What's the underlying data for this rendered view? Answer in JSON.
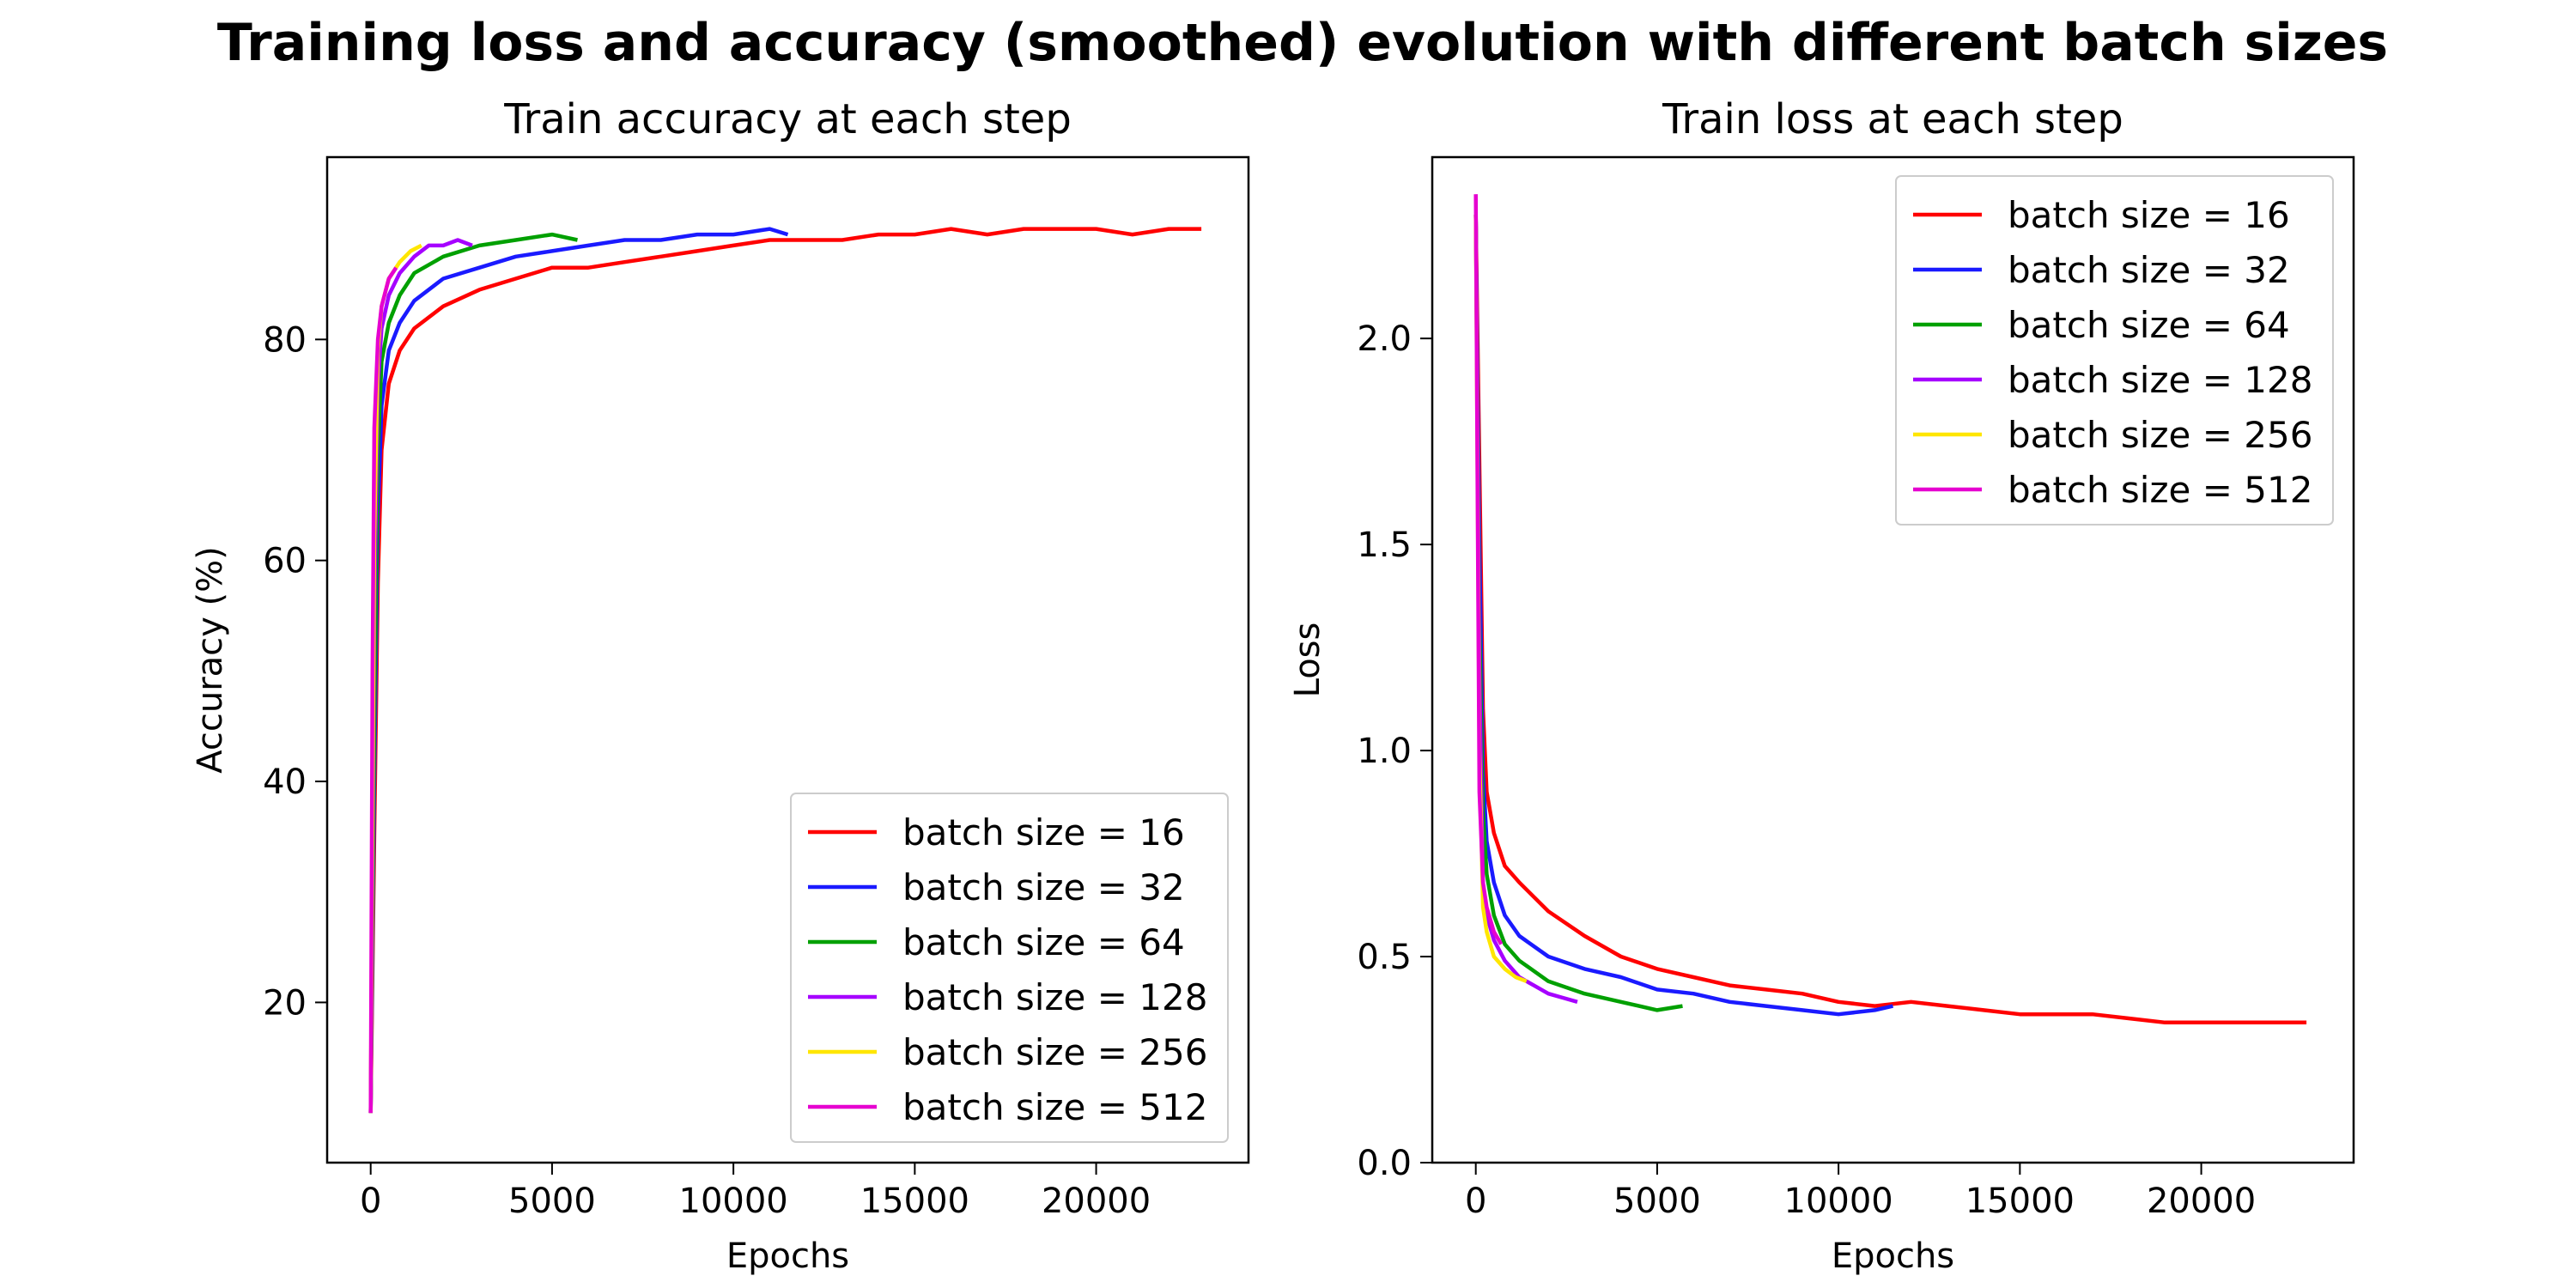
{
  "figure": {
    "title": "Training loss and accuracy (smoothed) evolution with different batch sizes"
  },
  "colors": {
    "batch_16": "#ff0000",
    "batch_32": "#1a1aff",
    "batch_64": "#00a000",
    "batch_128": "#a600ff",
    "batch_256": "#ffe600",
    "batch_512": "#e600d0"
  },
  "chart_data": [
    {
      "type": "line",
      "title": "Train accuracy at each step",
      "xlabel": "Epochs",
      "ylabel": "Accuracy (%)",
      "xlim": [
        -1200,
        24200
      ],
      "ylim": [
        5.5,
        96.5
      ],
      "xticks": [
        0,
        5000,
        10000,
        15000,
        20000
      ],
      "yticks": [
        20,
        40,
        60,
        80
      ],
      "grid": false,
      "legend": "lower-right",
      "series": [
        {
          "name": "batch size = 16",
          "color_key": "batch_16",
          "x": [
            0,
            100,
            200,
            300,
            500,
            800,
            1200,
            2000,
            3000,
            4000,
            5000,
            6000,
            7000,
            8000,
            9000,
            10000,
            11000,
            12000,
            13000,
            14000,
            15000,
            16000,
            17000,
            18000,
            19000,
            20000,
            21000,
            22000,
            22900
          ],
          "y": [
            10,
            35,
            58,
            70,
            76,
            79,
            81,
            83,
            84.5,
            85.5,
            86.5,
            86.5,
            87,
            87.5,
            88,
            88.5,
            89,
            89,
            89,
            89.5,
            89.5,
            90,
            89.5,
            90,
            90,
            90,
            89.5,
            90,
            90
          ]
        },
        {
          "name": "batch size = 32",
          "color_key": "batch_32",
          "x": [
            0,
            100,
            200,
            300,
            500,
            800,
            1200,
            2000,
            3000,
            4000,
            5000,
            6000,
            7000,
            8000,
            9000,
            10000,
            11000,
            11500
          ],
          "y": [
            10,
            40,
            64,
            74,
            79,
            81.5,
            83.5,
            85.5,
            86.5,
            87.5,
            88,
            88.5,
            89,
            89,
            89.5,
            89.5,
            90,
            89.5
          ]
        },
        {
          "name": "batch size = 64",
          "color_key": "batch_64",
          "x": [
            0,
            100,
            200,
            300,
            500,
            800,
            1200,
            2000,
            3000,
            4000,
            5000,
            5700
          ],
          "y": [
            10,
            45,
            70,
            78,
            81.5,
            84,
            86,
            87.5,
            88.5,
            89,
            89.5,
            89
          ]
        },
        {
          "name": "batch size = 128",
          "color_key": "batch_128",
          "x": [
            0,
            100,
            200,
            300,
            500,
            800,
            1200,
            1600,
            2000,
            2400,
            2800
          ],
          "y": [
            10,
            55,
            76,
            81,
            84,
            86,
            87.5,
            88.5,
            88.5,
            89,
            88.5
          ]
        },
        {
          "name": "batch size = 256",
          "color_key": "batch_256",
          "x": [
            0,
            100,
            200,
            300,
            500,
            800,
            1100,
            1400
          ],
          "y": [
            10,
            62,
            79,
            83,
            85.5,
            87,
            88,
            88.5
          ]
        },
        {
          "name": "batch size = 512",
          "color_key": "batch_512",
          "x": [
            0,
            50,
            100,
            200,
            300,
            500,
            700
          ],
          "y": [
            10,
            50,
            72,
            80,
            83,
            85.5,
            86.5
          ]
        }
      ]
    },
    {
      "type": "line",
      "title": "Train loss at each step",
      "xlabel": "Epochs",
      "ylabel": "Loss",
      "xlim": [
        -1200,
        24200
      ],
      "ylim": [
        0.0,
        2.44
      ],
      "xticks": [
        0,
        5000,
        10000,
        15000,
        20000
      ],
      "yticks": [
        0.0,
        0.5,
        1.0,
        1.5,
        2.0
      ],
      "grid": false,
      "legend": "upper-right",
      "series": [
        {
          "name": "batch size = 16",
          "color_key": "batch_16",
          "x": [
            0,
            100,
            200,
            300,
            500,
            800,
            1200,
            2000,
            3000,
            4000,
            5000,
            6000,
            7000,
            8000,
            9000,
            10000,
            11000,
            12000,
            13000,
            14000,
            15000,
            16000,
            17000,
            18000,
            19000,
            20000,
            21000,
            22000,
            22900
          ],
          "y": [
            2.3,
            1.7,
            1.1,
            0.9,
            0.8,
            0.72,
            0.68,
            0.61,
            0.55,
            0.5,
            0.47,
            0.45,
            0.43,
            0.42,
            0.41,
            0.39,
            0.38,
            0.39,
            0.38,
            0.37,
            0.36,
            0.36,
            0.36,
            0.35,
            0.34,
            0.34,
            0.34,
            0.34,
            0.34
          ]
        },
        {
          "name": "batch size = 32",
          "color_key": "batch_32",
          "x": [
            0,
            100,
            200,
            300,
            500,
            800,
            1200,
            2000,
            3000,
            4000,
            5000,
            6000,
            7000,
            8000,
            9000,
            10000,
            11000,
            11500
          ],
          "y": [
            2.3,
            1.5,
            0.95,
            0.78,
            0.68,
            0.6,
            0.55,
            0.5,
            0.47,
            0.45,
            0.42,
            0.41,
            0.39,
            0.38,
            0.37,
            0.36,
            0.37,
            0.38
          ]
        },
        {
          "name": "batch size = 64",
          "color_key": "batch_64",
          "x": [
            0,
            100,
            200,
            300,
            500,
            800,
            1200,
            2000,
            3000,
            4000,
            5000,
            5700
          ],
          "y": [
            2.3,
            1.3,
            0.85,
            0.7,
            0.6,
            0.53,
            0.49,
            0.44,
            0.41,
            0.39,
            0.37,
            0.38
          ]
        },
        {
          "name": "batch size = 128",
          "color_key": "batch_128",
          "x": [
            0,
            100,
            200,
            300,
            500,
            800,
            1200,
            1600,
            2000,
            2400,
            2800
          ],
          "y": [
            2.3,
            1.2,
            0.66,
            0.6,
            0.54,
            0.49,
            0.45,
            0.43,
            0.41,
            0.4,
            0.39
          ]
        },
        {
          "name": "batch size = 256",
          "color_key": "batch_256",
          "x": [
            0,
            100,
            200,
            300,
            500,
            800,
            1100,
            1400
          ],
          "y": [
            2.3,
            1.0,
            0.62,
            0.56,
            0.5,
            0.47,
            0.45,
            0.44
          ]
        },
        {
          "name": "batch size = 512",
          "color_key": "batch_512",
          "x": [
            0,
            50,
            100,
            200,
            300,
            500,
            700
          ],
          "y": [
            2.35,
            1.6,
            0.9,
            0.68,
            0.62,
            0.56,
            0.53
          ]
        }
      ]
    }
  ]
}
